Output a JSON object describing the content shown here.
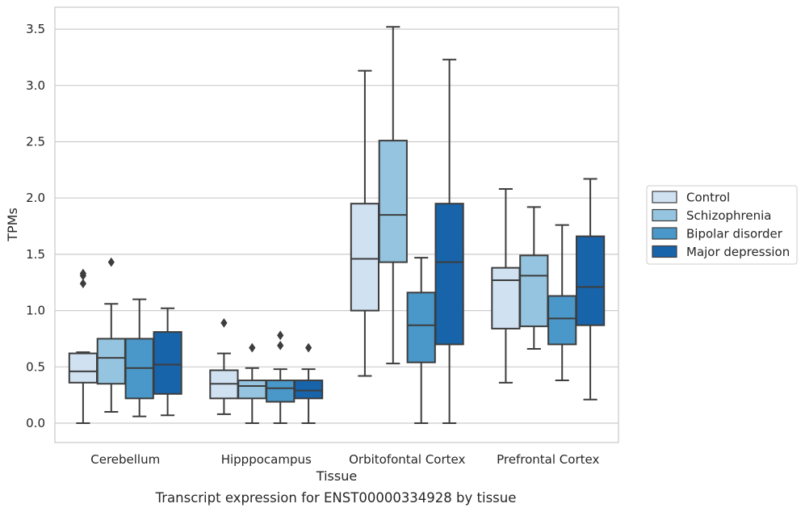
{
  "chart_data": {
    "type": "boxplot",
    "caption": "Transcript expression for ENST00000334928 by tissue",
    "xlabel": "Tissue",
    "ylabel": "TPMs",
    "ylim": [
      -0.17,
      3.7
    ],
    "yticks": [
      0.0,
      0.5,
      1.0,
      1.5,
      2.0,
      2.5,
      3.0,
      3.5
    ],
    "ytick_labels": [
      "0.0",
      "0.5",
      "1.0",
      "1.5",
      "2.0",
      "2.5",
      "3.0",
      "3.5"
    ],
    "grid": "horizontal",
    "legend_position": "right",
    "categories": [
      "Cerebellum",
      "Hipppocampus",
      "Orbitofontal Cortex",
      "Prefrontal Cortex"
    ],
    "series": [
      {
        "name": "Control",
        "color": "#d0e1f2",
        "boxes": [
          {
            "whislo": 0.0,
            "q1": 0.36,
            "med": 0.46,
            "q3": 0.62,
            "whishi": 0.63,
            "fliers": [
              1.24,
              1.31,
              1.33
            ]
          },
          {
            "whislo": 0.08,
            "q1": 0.22,
            "med": 0.35,
            "q3": 0.47,
            "whishi": 0.62,
            "fliers": [
              0.89
            ]
          },
          {
            "whislo": 0.42,
            "q1": 1.0,
            "med": 1.46,
            "q3": 1.95,
            "whishi": 3.13,
            "fliers": []
          },
          {
            "whislo": 0.36,
            "q1": 0.84,
            "med": 1.27,
            "q3": 1.38,
            "whishi": 2.08,
            "fliers": []
          }
        ]
      },
      {
        "name": "Schizophrenia",
        "color": "#94c4df",
        "boxes": [
          {
            "whislo": 0.1,
            "q1": 0.35,
            "med": 0.58,
            "q3": 0.75,
            "whishi": 1.06,
            "fliers": [
              1.43
            ]
          },
          {
            "whislo": 0.0,
            "q1": 0.22,
            "med": 0.33,
            "q3": 0.38,
            "whishi": 0.49,
            "fliers": [
              0.67
            ]
          },
          {
            "whislo": 0.53,
            "q1": 1.43,
            "med": 1.85,
            "q3": 2.51,
            "whishi": 3.52,
            "fliers": []
          },
          {
            "whislo": 0.66,
            "q1": 0.86,
            "med": 1.31,
            "q3": 1.49,
            "whishi": 1.92,
            "fliers": []
          }
        ]
      },
      {
        "name": "Bipolar disorder",
        "color": "#4a98c9",
        "boxes": [
          {
            "whislo": 0.06,
            "q1": 0.22,
            "med": 0.49,
            "q3": 0.75,
            "whishi": 1.1,
            "fliers": []
          },
          {
            "whislo": 0.0,
            "q1": 0.19,
            "med": 0.31,
            "q3": 0.38,
            "whishi": 0.48,
            "fliers": [
              0.69,
              0.78
            ]
          },
          {
            "whislo": 0.0,
            "q1": 0.54,
            "med": 0.87,
            "q3": 1.16,
            "whishi": 1.47,
            "fliers": []
          },
          {
            "whislo": 0.38,
            "q1": 0.7,
            "med": 0.93,
            "q3": 1.13,
            "whishi": 1.76,
            "fliers": []
          }
        ]
      },
      {
        "name": "Major depression",
        "color": "#1764ab",
        "boxes": [
          {
            "whislo": 0.07,
            "q1": 0.26,
            "med": 0.52,
            "q3": 0.81,
            "whishi": 1.02,
            "fliers": []
          },
          {
            "whislo": 0.0,
            "q1": 0.22,
            "med": 0.29,
            "q3": 0.38,
            "whishi": 0.48,
            "fliers": [
              0.67
            ]
          },
          {
            "whislo": 0.0,
            "q1": 0.7,
            "med": 1.43,
            "q3": 1.95,
            "whishi": 3.23,
            "fliers": []
          },
          {
            "whislo": 0.21,
            "q1": 0.87,
            "med": 1.21,
            "q3": 1.66,
            "whishi": 2.17,
            "fliers": []
          }
        ]
      }
    ]
  }
}
